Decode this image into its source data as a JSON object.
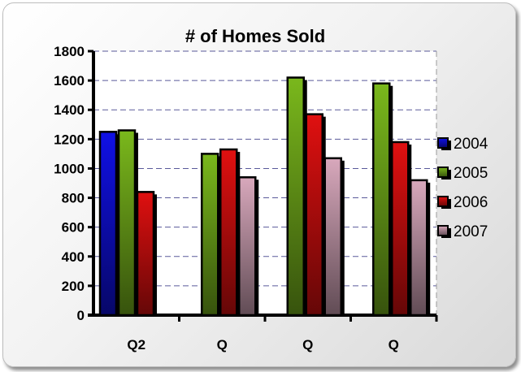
{
  "chart_data": {
    "type": "bar",
    "title": "# of Homes Sold",
    "categories": [
      "Q2",
      "Q",
      "Q",
      "Q"
    ],
    "ylim": [
      0,
      1800
    ],
    "ytick_step": 200,
    "grid": true,
    "legend_position": "right",
    "series": [
      {
        "name": "2004",
        "color": "#1010e6",
        "values": [
          1250,
          null,
          null,
          null
        ]
      },
      {
        "name": "2005",
        "color": "#7ab81c",
        "values": [
          1260,
          1100,
          1620,
          1580
        ]
      },
      {
        "name": "2006",
        "color": "#e01010",
        "values": [
          840,
          1130,
          1370,
          1180
        ]
      },
      {
        "name": "2007",
        "color": "#d8a8bc",
        "values": [
          null,
          940,
          1070,
          920
        ]
      }
    ]
  }
}
